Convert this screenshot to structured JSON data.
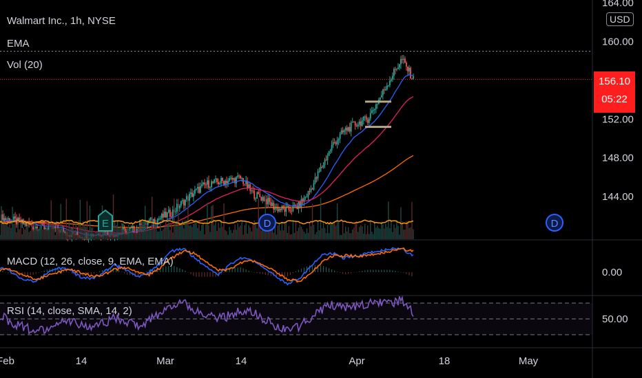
{
  "header": {
    "symbol_line": "Walmart Inc., 1h, NYSE",
    "ema_label": "EMA",
    "vol_label": "Vol (20)",
    "currency": "USD"
  },
  "price_badge": {
    "price": "156.10",
    "countdown": "05:22",
    "color": "#ff1e1e"
  },
  "colors": {
    "background": "#000000",
    "up": "#26a69a",
    "down": "#ef5350",
    "ema_fast": "#2962ff",
    "ema_mid": "#e91e63",
    "ema_slow": "#ff6d00",
    "vol_ma": "#ff9800",
    "macd": "#2962ff",
    "signal": "#ff6d00",
    "rsi": "#7e57c2"
  },
  "events": [
    {
      "label": "E",
      "type": "earnings",
      "date": "Feb 19"
    },
    {
      "label": "D",
      "type": "dividend",
      "date": "Mar 17"
    },
    {
      "label": "D",
      "type": "dividend",
      "date": "May 5"
    }
  ],
  "chart_data": [
    {
      "type": "line",
      "title": "Walmart Inc., 1h, NYSE",
      "x_ticks": [
        "Feb",
        "14",
        "Mar",
        "14",
        "Apr",
        "18",
        "May"
      ],
      "y_ticks": [
        "164.00",
        "160.00",
        "156.10",
        "152.00",
        "148.00",
        "144.00"
      ],
      "ylim": [
        139.6,
        164.3
      ],
      "last_price": 156.1,
      "recent_high_line": 159.0,
      "series": [
        {
          "name": "EMA",
          "role": "candle close approx",
          "x": [
            1,
            3,
            5,
            7,
            9,
            11,
            13,
            15,
            17,
            19,
            21,
            23,
            25,
            27,
            29,
            31,
            33,
            35,
            37,
            39,
            41,
            43,
            45,
            47,
            49,
            51,
            53,
            55,
            57,
            59,
            61,
            63,
            65,
            67,
            69,
            71,
            72
          ],
          "values": [
            141.8,
            141.6,
            141.2,
            140.9,
            140.8,
            140.6,
            140.2,
            140.0,
            140.1,
            140.3,
            140.2,
            140.4,
            140.7,
            141.4,
            141.8,
            142.4,
            143.5,
            144.5,
            145.3,
            145.5,
            145.7,
            145.9,
            144.3,
            143.8,
            142.8,
            142.6,
            143.0,
            144.6,
            147.0,
            149.4,
            150.8,
            151.5,
            152.0,
            154.0,
            156.2,
            158.2,
            156.1
          ]
        }
      ],
      "flag_pattern": {
        "top": 153.8,
        "bottom": 151.2
      },
      "date_labels": [
        "Feb",
        "14",
        "Mar",
        "14",
        "Apr",
        "18",
        "May"
      ]
    },
    {
      "type": "line",
      "title": "MACD (12, 26, close, 9, EMA, EMA)",
      "y_ticks": [
        "0.00"
      ],
      "series": [
        {
          "name": "MACD",
          "values": [
            0.2,
            0.0,
            -0.3,
            -0.4,
            -0.1,
            0.2,
            0.1,
            -0.2,
            -0.3,
            0.0,
            0.3,
            0.1,
            -0.2,
            0.0,
            0.4,
            0.9,
            1.0,
            0.6,
            0.2,
            -0.1,
            0.3,
            0.6,
            0.5,
            0.2,
            -0.2,
            -0.5,
            -0.3,
            0.2,
            0.7,
            0.8,
            0.6,
            0.7,
            0.8,
            0.9,
            1.0,
            1.0,
            0.7
          ]
        },
        {
          "name": "EMA",
          "values": [
            0.1,
            0.1,
            -0.1,
            -0.3,
            -0.2,
            0.0,
            0.1,
            0.0,
            -0.2,
            -0.1,
            0.1,
            0.2,
            0.0,
            -0.1,
            0.2,
            0.6,
            0.9,
            0.8,
            0.4,
            0.1,
            0.1,
            0.4,
            0.5,
            0.3,
            0.0,
            -0.3,
            -0.4,
            -0.1,
            0.4,
            0.7,
            0.7,
            0.7,
            0.7,
            0.8,
            0.9,
            1.0,
            0.9
          ]
        }
      ]
    },
    {
      "type": "line",
      "title": "RSI (14, close, SMA, 14, 2)",
      "y_ticks": [
        "50.00"
      ],
      "bands": [
        70,
        50,
        30
      ],
      "series": [
        {
          "name": "RSI",
          "values": [
            55,
            45,
            40,
            35,
            38,
            44,
            48,
            42,
            38,
            45,
            52,
            46,
            40,
            48,
            58,
            66,
            70,
            62,
            55,
            50,
            54,
            60,
            58,
            50,
            42,
            35,
            40,
            52,
            62,
            68,
            64,
            66,
            70,
            72,
            68,
            74,
            56
          ]
        }
      ]
    }
  ]
}
